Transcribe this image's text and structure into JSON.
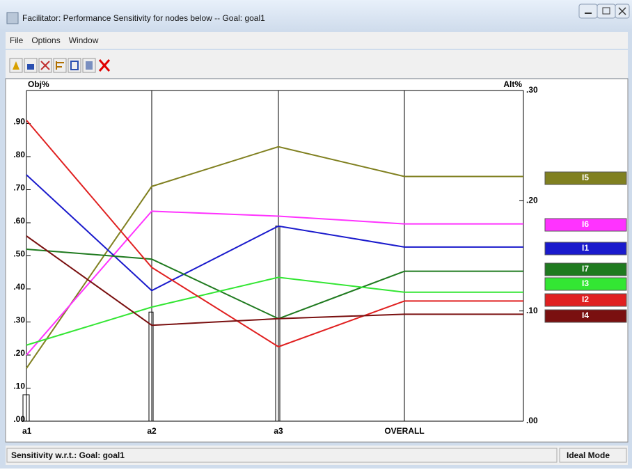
{
  "window": {
    "title": "Facilitator: Performance Sensitivity for nodes below -- Goal: goal1",
    "menu": [
      "File",
      "Options",
      "Window"
    ],
    "status_left": "Sensitivity w.r.t.: Goal: goal1",
    "status_right": "Ideal Mode"
  },
  "chart_data": {
    "type": "line",
    "ylabel": "Obj%",
    "y2label": "Alt%",
    "categories": [
      "a1",
      "a2",
      "a3",
      "OVERALL"
    ],
    "axis_by_category": [
      "y",
      "y",
      "y",
      "y2"
    ],
    "criterion_priorities": [
      0.08,
      0.33,
      0.59,
      null
    ],
    "ylim": [
      0,
      1
    ],
    "yticks": [
      {
        "value": 0,
        "label": ".00"
      },
      {
        "value": 0.1,
        "label": ".10"
      },
      {
        "value": 0.2,
        "label": ".20"
      },
      {
        "value": 0.3,
        "label": ".30"
      },
      {
        "value": 0.4,
        "label": ".40"
      },
      {
        "value": 0.5,
        "label": ".50"
      },
      {
        "value": 0.6,
        "label": ".60"
      },
      {
        "value": 0.7,
        "label": ".70"
      },
      {
        "value": 0.8,
        "label": ".80"
      },
      {
        "value": 0.9,
        "label": ".90"
      }
    ],
    "y2lim": [
      0,
      0.3
    ],
    "y2ticks": [
      {
        "value": 0,
        "label": ".00"
      },
      {
        "value": 0.1,
        "label": ".10"
      },
      {
        "value": 0.2,
        "label": ".20"
      },
      {
        "value": 0.3,
        "label": ".30"
      }
    ],
    "series": [
      {
        "name": "I5",
        "color": "#808020",
        "values": [
          0.16,
          0.71,
          0.83,
          0.222
        ]
      },
      {
        "name": "I6",
        "color": "#ff33ff",
        "values": [
          0.2,
          0.635,
          0.62,
          0.179
        ]
      },
      {
        "name": "I1",
        "color": "#1a1acc",
        "values": [
          0.745,
          0.395,
          0.59,
          0.158
        ]
      },
      {
        "name": "I7",
        "color": "#1f7a1f",
        "values": [
          0.52,
          0.49,
          0.31,
          0.136
        ]
      },
      {
        "name": "I3",
        "color": "#33e633",
        "values": [
          0.23,
          0.345,
          0.435,
          0.117
        ]
      },
      {
        "name": "I2",
        "color": "#e02020",
        "values": [
          0.91,
          0.465,
          0.225,
          0.109
        ]
      },
      {
        "name": "I4",
        "color": "#7a1010",
        "values": [
          0.56,
          0.29,
          0.31,
          0.097
        ]
      }
    ]
  }
}
